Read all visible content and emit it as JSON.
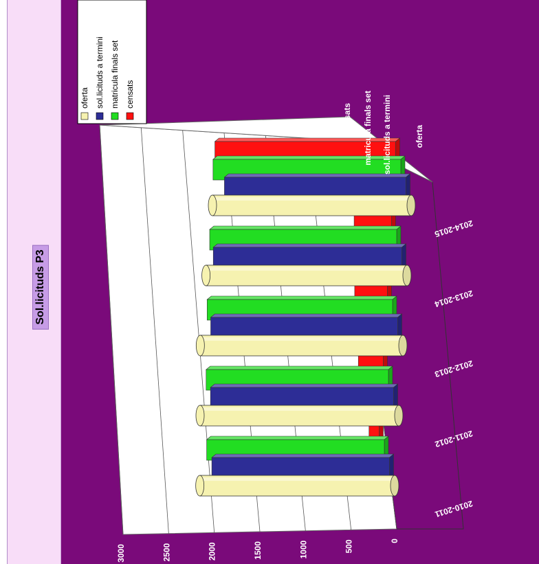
{
  "page_title": "Sol.licituds P3",
  "colors": {
    "panel_background": "#f8ddf8",
    "title_background": "#c79ce6",
    "chart_background": "#7a0a7a",
    "oferta": "#f6f2b0",
    "sol_licituds_a_termini": "#2d2d96",
    "matricula_finals_set": "#22dd22",
    "censats": "#ff1010"
  },
  "chart_data": {
    "type": "bar",
    "style": "3d-cylinder",
    "title": "Sol.licituds P3",
    "categories": [
      "2010-2011",
      "2011-2012",
      "2012-2013",
      "2013-2014",
      "2014-2015"
    ],
    "series": [
      {
        "name": "oferta",
        "values": [
          2500,
          2550,
          2600,
          2580,
          2550
        ]
      },
      {
        "name": "sol.licituds a termini",
        "values": [
          2280,
          2350,
          2400,
          2420,
          2330
        ]
      },
      {
        "name": "matricula finals set",
        "values": [
          2280,
          2340,
          2380,
          2400,
          2410
        ]
      },
      {
        "name": "censats",
        "values": [
          130,
          320,
          420,
          480,
          2320
        ]
      }
    ],
    "depth_labels": [
      "censats",
      "matricula finals set",
      "sol.licituds a termini",
      "oferta"
    ],
    "yticks": [
      "0",
      "500",
      "1000",
      "1500",
      "2000",
      "2500",
      "3000"
    ],
    "ylim": [
      0,
      3000
    ],
    "legend": {
      "position": "top-left",
      "entries": [
        "oferta",
        "sol.licituds a termini",
        "matricula finals set",
        "censats"
      ]
    },
    "grid": true
  }
}
